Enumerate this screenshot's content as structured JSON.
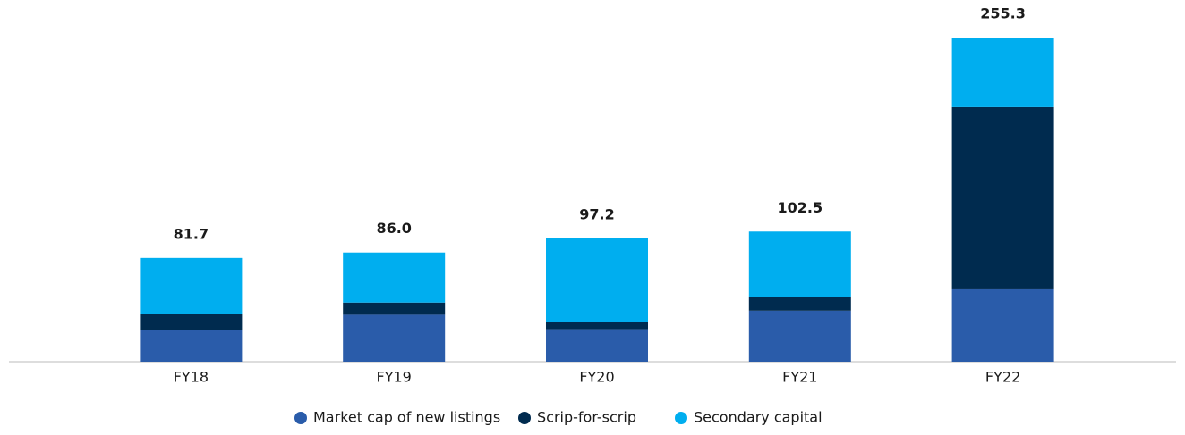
{
  "chart_data": {
    "type": "stacked_bar",
    "categories": [
      "FY18",
      "FY19",
      "FY20",
      "FY21",
      "FY22"
    ],
    "series": [
      {
        "name": "Market cap of new listings",
        "color": "#2a5caa",
        "values": [
          24.7,
          37.0,
          25.6,
          40.2,
          57.7
        ]
      },
      {
        "name": "Scrip-for-scrip",
        "color": "#002b4f",
        "values": [
          13.2,
          9.6,
          5.9,
          11.0,
          142.8
        ]
      },
      {
        "name": "Secondary capital",
        "color": "#00aeef",
        "values": [
          43.8,
          39.4,
          65.7,
          51.3,
          54.8
        ]
      }
    ],
    "totals": [
      81.7,
      86,
      97.2,
      102.5,
      255.3
    ],
    "total_labels": [
      "81.7",
      "86.0",
      "97.2",
      "102.5",
      "255.3"
    ],
    "ylim": [
      0,
      255.3
    ],
    "legend": "bottom"
  }
}
